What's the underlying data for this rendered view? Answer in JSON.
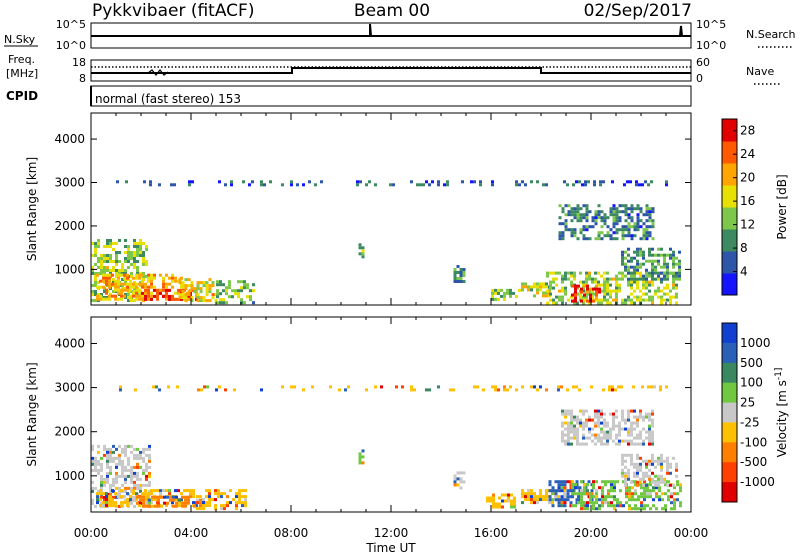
{
  "header": {
    "station": "Pykkvibaer (fitACF)",
    "beam": "Beam 00",
    "date": "02/Sep/2017"
  },
  "strips": {
    "nsky_label": "N.Sky",
    "nsearch_label": "N.Search",
    "nsky_ticks": [
      "10^5",
      "10^0"
    ],
    "freq_label_1": "Freq.",
    "freq_label_2": "[MHz]",
    "freq_ticks": [
      "18",
      "8"
    ],
    "nave_label": "Nave",
    "nave_ticks": [
      "60",
      "0"
    ],
    "cpid_label": "CPID",
    "cpid_text": "normal (fast stereo) 153"
  },
  "chart_data": [
    {
      "type": "heatmap",
      "name": "power",
      "ylabel": "Slant Range [km]",
      "xlabel": "",
      "ylim": [
        180,
        4600
      ],
      "xlim": [
        0,
        24
      ],
      "y_ticks": [
        1000,
        2000,
        3000,
        4000
      ],
      "colorbar": {
        "label": "Power [dB]",
        "ticks": [
          4,
          8,
          12,
          16,
          20,
          24,
          28
        ],
        "range": [
          0,
          30
        ],
        "colors": [
          "#1414ff",
          "#2d55a8",
          "#3d8a60",
          "#7dc84a",
          "#e8e000",
          "#ffa500",
          "#ff5a00",
          "#e00000"
        ]
      },
      "regions": [
        {
          "t": [
            0.0,
            2.2
          ],
          "r": [
            300,
            1700
          ],
          "value": 14
        },
        {
          "t": [
            0.2,
            3.8
          ],
          "r": [
            300,
            900
          ],
          "value": 20
        },
        {
          "t": [
            2.0,
            4.2
          ],
          "r": [
            300,
            550
          ],
          "value": 26
        },
        {
          "t": [
            3.5,
            5.0
          ],
          "r": [
            300,
            800
          ],
          "value": 18
        },
        {
          "t": [
            5.0,
            6.5
          ],
          "r": [
            250,
            750
          ],
          "value": 12
        },
        {
          "t": [
            10.7,
            10.9
          ],
          "r": [
            1300,
            1600
          ],
          "value": 12
        },
        {
          "t": [
            14.5,
            14.9
          ],
          "r": [
            700,
            1100
          ],
          "value": 8
        },
        {
          "t": [
            16.0,
            17.2
          ],
          "r": [
            300,
            550
          ],
          "value": 14
        },
        {
          "t": [
            17.2,
            18.4
          ],
          "r": [
            400,
            700
          ],
          "value": 16
        },
        {
          "t": [
            18.2,
            23.4
          ],
          "r": [
            250,
            950
          ],
          "value": 14
        },
        {
          "t": [
            19.2,
            20.4
          ],
          "r": [
            300,
            650
          ],
          "value": 26
        },
        {
          "t": [
            18.7,
            22.5
          ],
          "r": [
            1700,
            2500
          ],
          "value": 8
        },
        {
          "t": [
            21.2,
            23.5
          ],
          "r": [
            800,
            1500
          ],
          "value": 10
        },
        {
          "t": [
            1.0,
            23.0
          ],
          "r": [
            2950,
            3050
          ],
          "value": 6
        }
      ]
    },
    {
      "type": "heatmap",
      "name": "velocity",
      "xlabel": "Time UT",
      "ylabel": "Slant Range [km]",
      "ylim": [
        180,
        4600
      ],
      "xlim": [
        0,
        24
      ],
      "x_ticks": [
        "00:00",
        "04:00",
        "08:00",
        "12:00",
        "16:00",
        "20:00",
        "00:00"
      ],
      "y_ticks": [
        1000,
        2000,
        3000,
        4000
      ],
      "colorbar": {
        "label": "Velocity [m s^-1]",
        "ticks": [
          "1000",
          "500",
          "100",
          "25",
          "-25",
          "-100",
          "-500",
          "-1000"
        ],
        "colors": [
          "#1040d0",
          "#2a60b8",
          "#3a8860",
          "#70c840",
          "#c8c8c8",
          "#ffc000",
          "#ff8000",
          "#ff4000",
          "#e00000"
        ]
      },
      "regions": [
        {
          "t": [
            0.0,
            2.3
          ],
          "r": [
            300,
            1700
          ],
          "color": "#c8c8c8"
        },
        {
          "t": [
            0.2,
            4.2
          ],
          "r": [
            300,
            700
          ],
          "color": "#ffc000"
        },
        {
          "t": [
            1.8,
            4.5
          ],
          "r": [
            300,
            550
          ],
          "color": "#ff8000"
        },
        {
          "t": [
            4.2,
            6.2
          ],
          "r": [
            250,
            700
          ],
          "color": "#ffc000"
        },
        {
          "t": [
            10.7,
            10.9
          ],
          "r": [
            1300,
            1600
          ],
          "color": "#70c840"
        },
        {
          "t": [
            14.5,
            14.9
          ],
          "r": [
            700,
            1100
          ],
          "color": "#c8c8c8"
        },
        {
          "t": [
            15.8,
            17.0
          ],
          "r": [
            300,
            600
          ],
          "color": "#ffc000"
        },
        {
          "t": [
            17.2,
            19.0
          ],
          "r": [
            400,
            700
          ],
          "color": "#ffc000"
        },
        {
          "t": [
            18.3,
            20.0
          ],
          "r": [
            300,
            900
          ],
          "color": "#2a60b8"
        },
        {
          "t": [
            19.2,
            23.6
          ],
          "r": [
            250,
            900
          ],
          "color": "#70c840"
        },
        {
          "t": [
            18.8,
            22.5
          ],
          "r": [
            1700,
            2500
          ],
          "color": "#c8c8c8"
        },
        {
          "t": [
            21.2,
            23.4
          ],
          "r": [
            800,
            1500
          ],
          "color": "#c8c8c8"
        },
        {
          "t": [
            1.0,
            23.0
          ],
          "r": [
            2950,
            3050
          ],
          "color": "#ffc000"
        }
      ]
    }
  ]
}
